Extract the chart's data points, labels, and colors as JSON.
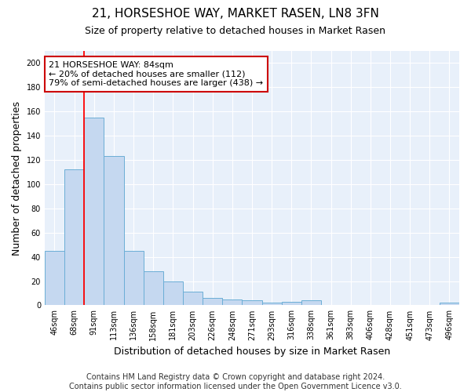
{
  "title": "21, HORSESHOE WAY, MARKET RASEN, LN8 3FN",
  "subtitle": "Size of property relative to detached houses in Market Rasen",
  "xlabel": "Distribution of detached houses by size in Market Rasen",
  "ylabel": "Number of detached properties",
  "categories": [
    "46sqm",
    "68sqm",
    "91sqm",
    "113sqm",
    "136sqm",
    "158sqm",
    "181sqm",
    "203sqm",
    "226sqm",
    "248sqm",
    "271sqm",
    "293sqm",
    "316sqm",
    "338sqm",
    "361sqm",
    "383sqm",
    "406sqm",
    "428sqm",
    "451sqm",
    "473sqm",
    "496sqm"
  ],
  "values": [
    45,
    112,
    155,
    123,
    45,
    28,
    20,
    11,
    6,
    5,
    4,
    2,
    3,
    4,
    0,
    0,
    0,
    0,
    0,
    0,
    2
  ],
  "bar_color": "#c5d8f0",
  "bar_edge_color": "#6baed6",
  "background_color": "#e8f0fa",
  "grid_color": "#ffffff",
  "red_line_x": 1.5,
  "annotation_text": "21 HORSESHOE WAY: 84sqm\n← 20% of detached houses are smaller (112)\n79% of semi-detached houses are larger (438) →",
  "annotation_box_facecolor": "#ffffff",
  "annotation_box_edgecolor": "#cc0000",
  "ylim": [
    0,
    210
  ],
  "yticks": [
    0,
    20,
    40,
    60,
    80,
    100,
    120,
    140,
    160,
    180,
    200
  ],
  "footer": "Contains HM Land Registry data © Crown copyright and database right 2024.\nContains public sector information licensed under the Open Government Licence v3.0.",
  "title_fontsize": 11,
  "subtitle_fontsize": 9,
  "xlabel_fontsize": 9,
  "ylabel_fontsize": 9,
  "tick_fontsize": 7,
  "annotation_fontsize": 8,
  "footer_fontsize": 7
}
